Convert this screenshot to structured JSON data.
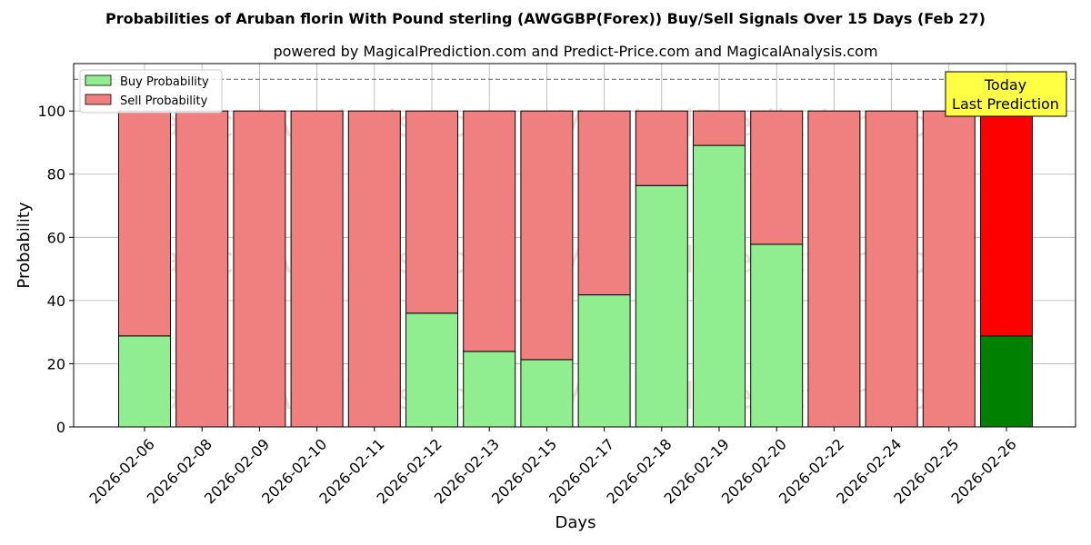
{
  "chart_data": {
    "type": "bar",
    "stacked": true,
    "title": "Probabilities of Aruban florin With Pound sterling (AWGGBP(Forex)) Buy/Sell Signals Over 15 Days (Feb 27)",
    "subtitle": "powered by MagicalPrediction.com and Predict-Price.com and MagicalAnalysis.com",
    "xlabel": "Days",
    "ylabel": "Probability",
    "ylim": [
      0,
      115
    ],
    "yticks": [
      0,
      20,
      40,
      60,
      80,
      100
    ],
    "reference_line": 110,
    "grid": true,
    "legend_position": "top-left",
    "categories": [
      "2026-02-06",
      "2026-02-08",
      "2026-02-09",
      "2026-02-10",
      "2026-02-11",
      "2026-02-12",
      "2026-02-13",
      "2026-02-15",
      "2026-02-17",
      "2026-02-18",
      "2026-02-19",
      "2026-02-20",
      "2026-02-22",
      "2026-02-24",
      "2026-02-25",
      "2026-02-26"
    ],
    "series": [
      {
        "name": "Buy Probability",
        "color": "#90ee90",
        "highlight_color": "#008000",
        "values": [
          28.8,
          0,
          0,
          0,
          0,
          36,
          23.9,
          21.3,
          41.8,
          76.4,
          89.1,
          57.8,
          0,
          0,
          0,
          28.8
        ]
      },
      {
        "name": "Sell Probability",
        "color": "#f08080",
        "highlight_color": "#ff0000",
        "values": [
          71.2,
          100,
          100,
          100,
          100,
          64,
          76.1,
          78.7,
          58.2,
          23.6,
          10.9,
          42.2,
          100,
          100,
          100,
          71.2
        ]
      }
    ],
    "highlight_index": 15,
    "annotation": {
      "line1": "Today",
      "line2": "Last Prediction",
      "color": "#ffff44"
    },
    "watermarks": [
      "MagicalAnalysis.com",
      "MagicalPrediction.com"
    ]
  }
}
